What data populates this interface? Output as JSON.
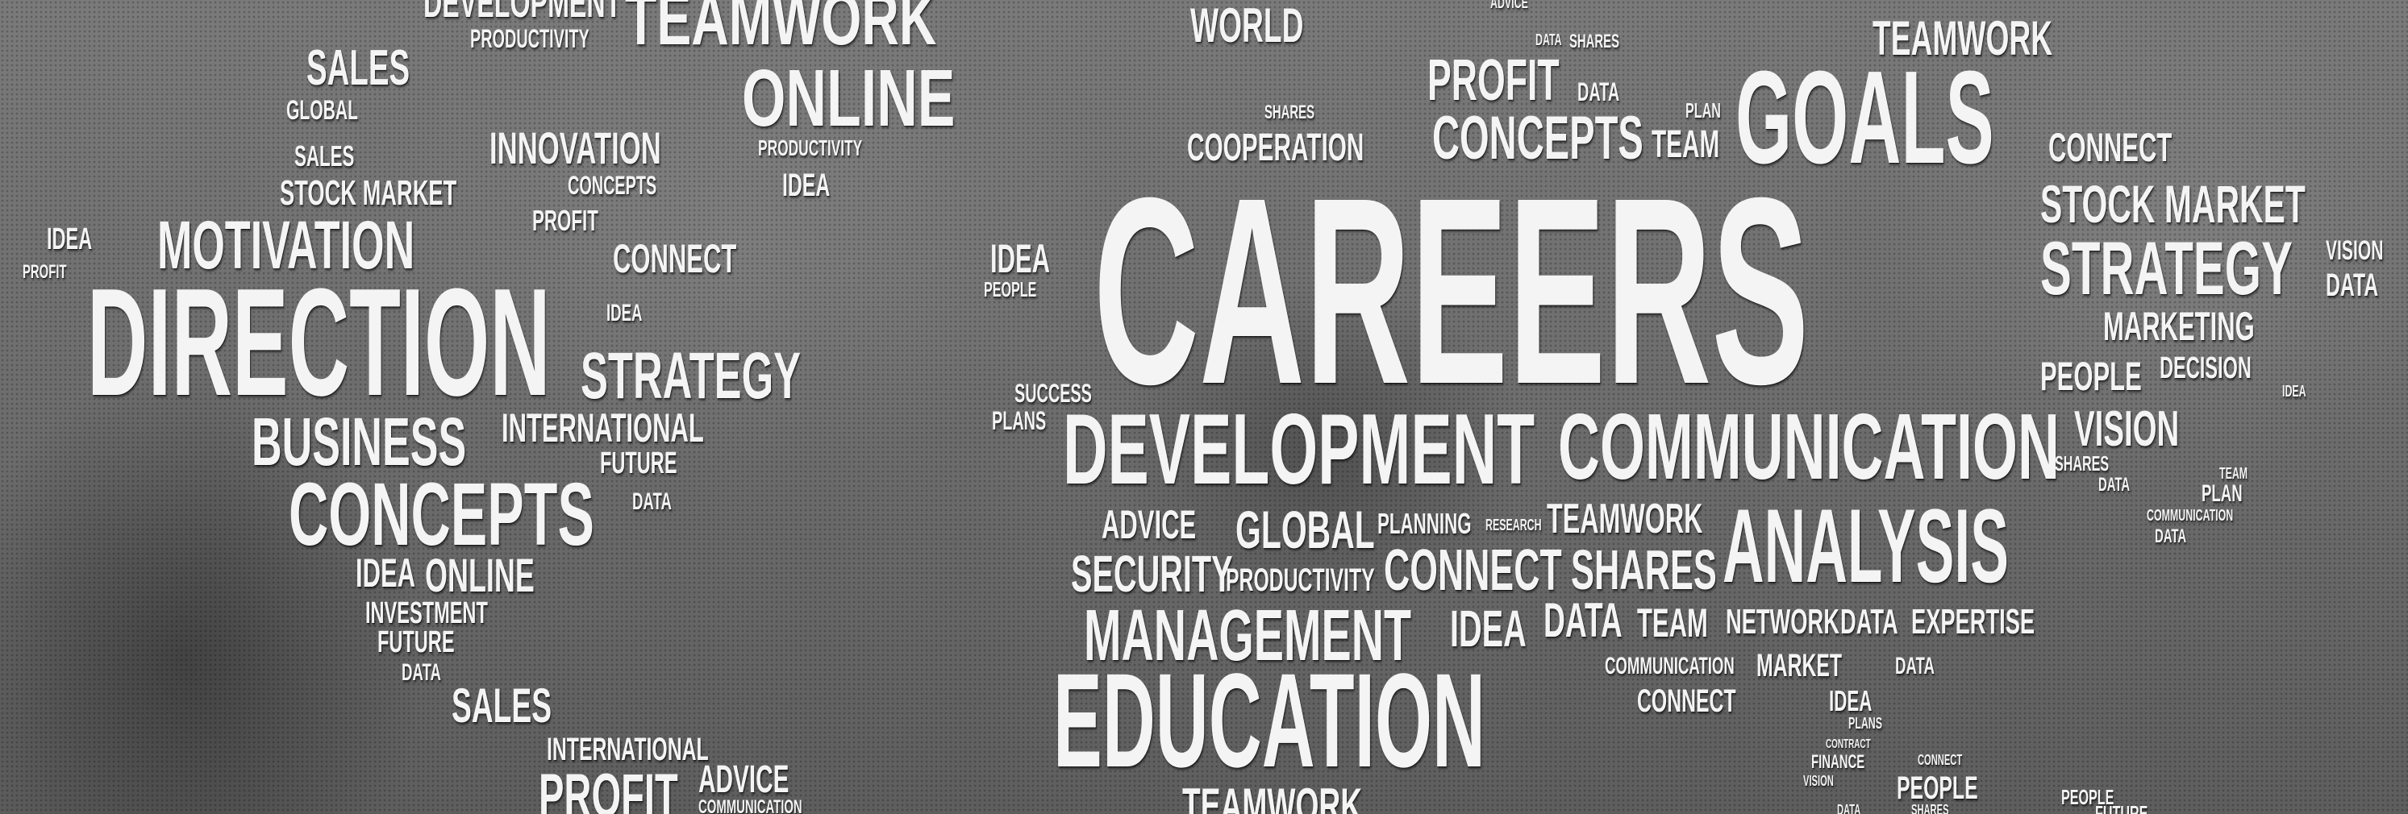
{
  "image": {
    "description_words": "word cloud over photo",
    "words": {
      "careers": "CAREERS",
      "direction": "DIRECTION",
      "goals": "GOALS",
      "development_main": "DEVELOPMENT",
      "communication_main": "COMMUNICATION",
      "analysis": "ANALYSIS",
      "education": "EDUCATION",
      "management": "MANAGEMENT",
      "concepts_left": "CONCEPTS",
      "business": "BUSINESS",
      "motivation": "MOTIVATION",
      "strategy_left": "STRATEGY",
      "strategy_right": "STRATEGY",
      "online_top": "ONLINE",
      "teamwork_top": "TEAMWORK",
      "innovation": "INNOVATION",
      "sales_top": "SALES",
      "sales_small": "SALES",
      "sales_bottom": "SALES",
      "global_left": "GLOBAL",
      "stock_market_left": "STOCK MARKET",
      "stock_market_right": "STOCK MARKET",
      "profit_left": "PROFIT",
      "profit_small": "PROFIT",
      "profit_top": "PROFIT",
      "profit_bottom": "PROFIT",
      "concepts_small": "CONCEPTS",
      "concepts_top": "CONCEPTS",
      "connect_left": "CONNECT",
      "connect_right": "CONNECT",
      "connect_mid": "CONNECT",
      "connect_bottom": "CONNECT",
      "connect_tiny": "CONNECT",
      "idea_far_left": "IDEA",
      "idea_left": "IDEA",
      "idea_small": "IDEA",
      "idea_mid": "IDEA",
      "idea_center": "IDEA",
      "idea_mgmt": "IDEA",
      "idea_bottom_right": "IDEA",
      "idea_tiny": "IDEA",
      "international_left": "INTERNATIONAL",
      "international_bottom": "INTERNATIONAL",
      "future_left": "FUTURE",
      "future_bottom": "FUTURE",
      "future_br": "FUTURE",
      "data_left": "DATA",
      "data_left2": "DATA",
      "data_top": "DATA",
      "data_top2": "DATA",
      "data_right": "DATA",
      "data_mid": "DATA",
      "data_mid2": "DATA",
      "data_comm": "DATA",
      "data_small_right": "DATA",
      "data_small_right2": "DATA",
      "data_bottom": "DATA",
      "online_left": "ONLINE",
      "investment": "INVESTMENT",
      "advice_bottom": "ADVICE",
      "advice_mid": "ADVICE",
      "advice_top": "ADVICE",
      "communication_bottom": "COMMUNICATION",
      "communication_small": "COMMUNICATION",
      "communication_tiny": "COMMUNICATION",
      "development_top": "DEVELOPMENT",
      "productivity_top": "PRODUCTIVITY",
      "productivity_online": "PRODUCTIVITY",
      "productivity_mid": "PRODUCTIVITY",
      "world": "WORLD",
      "shares_top": "SHARES",
      "shares_small": "SHARES",
      "shares_mid": "SHARES",
      "shares_bottom": "SHARES",
      "teamwork_right": "TEAMWORK",
      "teamwork_mid": "TEAMWORK",
      "teamwork_bottom": "TEAMWORK",
      "cooperation": "COOPERATION",
      "plan_top": "PLAN",
      "plan_right": "PLAN",
      "team_top": "TEAM",
      "team_mid": "TEAM",
      "team_small": "TEAM",
      "vision_right": "VISION",
      "vision_mid": "VISION",
      "vision_tiny": "VISION",
      "marketing": "MARKETING",
      "people_left": "PEOPLE",
      "people_right": "PEOPLE",
      "people_bottom": "PEOPLE",
      "people_br": "PEOPLE",
      "decision": "DECISION",
      "success": "SUCCESS",
      "plans_left": "PLANS",
      "plans_small": "PLANS",
      "global_mid": "GLOBAL",
      "planning": "PLANNING",
      "research": "RESEARCH",
      "security": "SECURITY",
      "network": "NETWORK",
      "expertise": "EXPERTISE",
      "market": "MARKET",
      "contract": "CONTRACT",
      "finance": "FINANCE"
    }
  }
}
